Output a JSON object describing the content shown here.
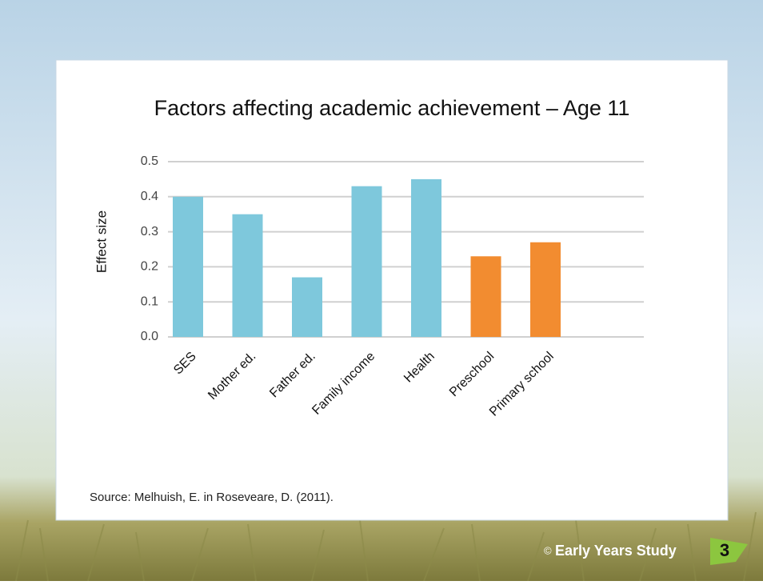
{
  "chart_data": {
    "type": "bar",
    "title": "Factors affecting academic achievement – Age 11",
    "y_label": "Effect size",
    "categories": [
      "SES",
      "Mother ed.",
      "Father ed.",
      "Family income",
      "Health",
      "Preschool",
      "Primary school"
    ],
    "values": [
      0.4,
      0.35,
      0.17,
      0.43,
      0.45,
      0.23,
      0.27
    ],
    "colors": [
      "#7ec8dc",
      "#7ec8dc",
      "#7ec8dc",
      "#7ec8dc",
      "#7ec8dc",
      "#f28c30",
      "#f28c30"
    ],
    "ylim": [
      0,
      0.5
    ],
    "yticks": [
      {
        "value": 0,
        "label": "0.0"
      },
      0.1,
      0.2,
      0.3,
      0.4,
      0.5
    ],
    "grid": true
  },
  "source": "Source: Melhuish, E. in Roseveare, D. (2011).",
  "footer": {
    "copyright": "©",
    "brand": "Early Years Study",
    "page_number": "3"
  }
}
